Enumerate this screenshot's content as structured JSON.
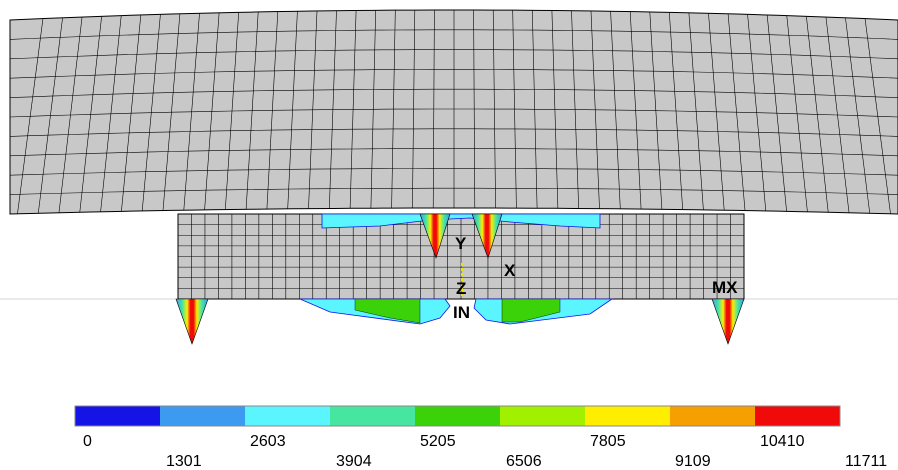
{
  "axis_triad": {
    "y_label": "Y",
    "x_label": "X",
    "z_label": "Z",
    "origin_label": "IN"
  },
  "max_marker": "MX",
  "colors": {
    "background": "#ffffff",
    "mesh_fill": "#c8c8c8",
    "mesh_line": "#000000",
    "triad_yellow": "#e6e600"
  },
  "legend": {
    "bands": [
      "#1414e6",
      "#3c9bf0",
      "#5af5ff",
      "#46e6a0",
      "#3cd20a",
      "#a0f000",
      "#ffee00",
      "#f5a000",
      "#f00a0a"
    ],
    "values_top": [
      "0",
      "2603",
      "5205",
      "7805",
      "10410"
    ],
    "values_bottom": [
      "1301",
      "3904",
      "6506",
      "9109",
      "11711"
    ]
  },
  "chart_data": {
    "type": "heatmap",
    "title": "",
    "colorbar_min": 0,
    "colorbar_max": 11711,
    "colorbar_ticks": [
      0,
      1301,
      2603,
      3904,
      5205,
      6506,
      7805,
      9109,
      10410,
      11711
    ]
  }
}
